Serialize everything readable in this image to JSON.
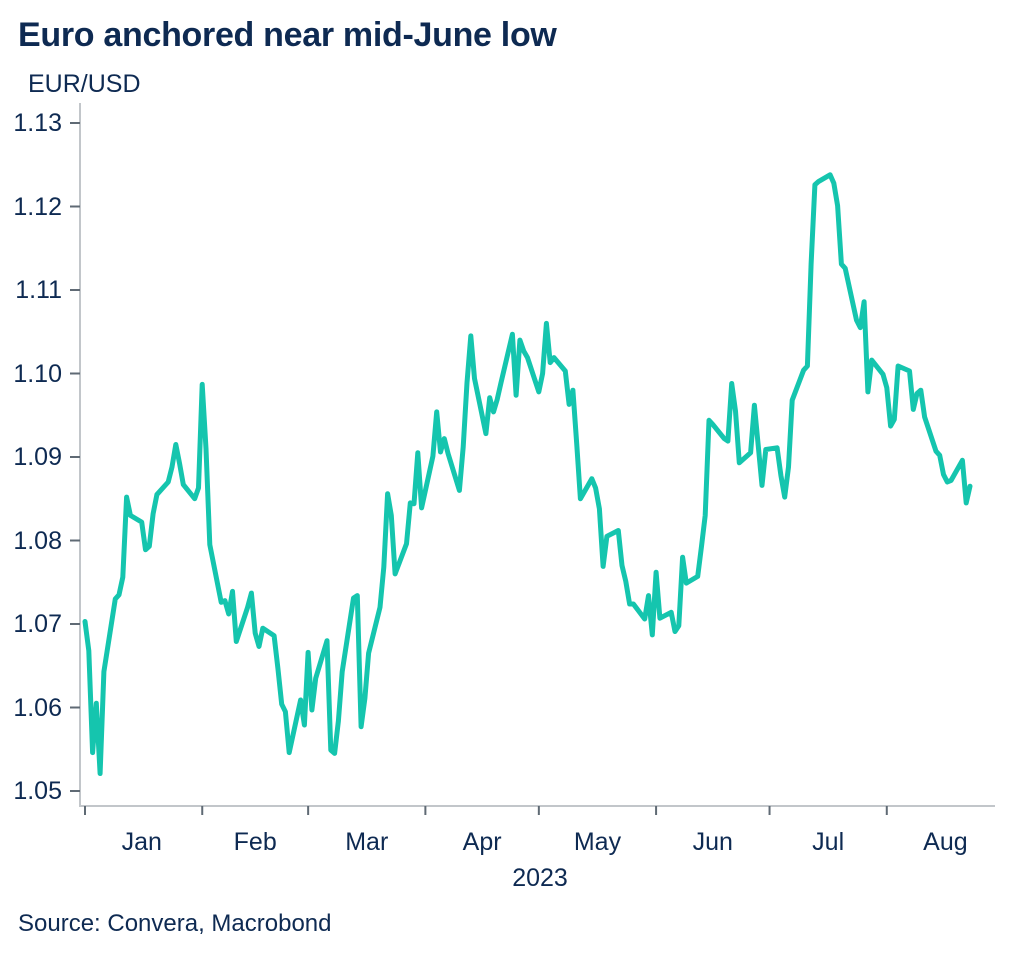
{
  "colors": {
    "accent_line": "#15c5ae",
    "text_navy": "#0e2a52",
    "axis_line": "#c2c6ca",
    "axis_tick": "#5f6a74",
    "background": "#ffffff"
  },
  "chart_data": {
    "type": "line",
    "title": "Euro anchored near mid-June low",
    "ylabel": "EUR/USD",
    "xlabel": "2023",
    "source": "Source: Convera, Macrobond",
    "ylim": [
      1.05,
      1.13
    ],
    "grid": false,
    "legend": "none",
    "line_color": "#15c5ae",
    "y_tick_labels": [
      "1.05",
      "1.06",
      "1.07",
      "1.08",
      "1.09",
      "1.10",
      "1.11",
      "1.12",
      "1.13"
    ],
    "x_tick_labels": [
      "Jan",
      "Feb",
      "Mar",
      "Apr",
      "May",
      "Jun",
      "Jul",
      "Aug"
    ],
    "series": [
      {
        "name": "EUR/USD",
        "dates": [
          "2023-01-01",
          "2023-01-02",
          "2023-01-03",
          "2023-01-04",
          "2023-01-05",
          "2023-01-06",
          "2023-01-09",
          "2023-01-10",
          "2023-01-11",
          "2023-01-12",
          "2023-01-13",
          "2023-01-16",
          "2023-01-17",
          "2023-01-18",
          "2023-01-19",
          "2023-01-20",
          "2023-01-23",
          "2023-01-24",
          "2023-01-25",
          "2023-01-26",
          "2023-01-27",
          "2023-01-30",
          "2023-01-31",
          "2023-02-01",
          "2023-02-02",
          "2023-02-03",
          "2023-02-06",
          "2023-02-07",
          "2023-02-08",
          "2023-02-09",
          "2023-02-10",
          "2023-02-13",
          "2023-02-14",
          "2023-02-15",
          "2023-02-16",
          "2023-02-17",
          "2023-02-20",
          "2023-02-21",
          "2023-02-22",
          "2023-02-23",
          "2023-02-24",
          "2023-02-27",
          "2023-02-28",
          "2023-03-01",
          "2023-03-02",
          "2023-03-03",
          "2023-03-06",
          "2023-03-07",
          "2023-03-08",
          "2023-03-09",
          "2023-03-10",
          "2023-03-13",
          "2023-03-14",
          "2023-03-15",
          "2023-03-16",
          "2023-03-17",
          "2023-03-20",
          "2023-03-21",
          "2023-03-22",
          "2023-03-23",
          "2023-03-24",
          "2023-03-27",
          "2023-03-28",
          "2023-03-29",
          "2023-03-30",
          "2023-03-31",
          "2023-04-03",
          "2023-04-04",
          "2023-04-05",
          "2023-04-06",
          "2023-04-07",
          "2023-04-10",
          "2023-04-11",
          "2023-04-12",
          "2023-04-13",
          "2023-04-14",
          "2023-04-17",
          "2023-04-18",
          "2023-04-19",
          "2023-04-20",
          "2023-04-21",
          "2023-04-24",
          "2023-04-25",
          "2023-04-26",
          "2023-04-27",
          "2023-04-28",
          "2023-05-01",
          "2023-05-02",
          "2023-05-03",
          "2023-05-04",
          "2023-05-05",
          "2023-05-08",
          "2023-05-09",
          "2023-05-10",
          "2023-05-11",
          "2023-05-12",
          "2023-05-15",
          "2023-05-16",
          "2023-05-17",
          "2023-05-18",
          "2023-05-19",
          "2023-05-22",
          "2023-05-23",
          "2023-05-24",
          "2023-05-25",
          "2023-05-26",
          "2023-05-29",
          "2023-05-30",
          "2023-05-31",
          "2023-06-01",
          "2023-06-02",
          "2023-06-05",
          "2023-06-06",
          "2023-06-07",
          "2023-06-08",
          "2023-06-09",
          "2023-06-12",
          "2023-06-13",
          "2023-06-14",
          "2023-06-15",
          "2023-06-16",
          "2023-06-19",
          "2023-06-20",
          "2023-06-21",
          "2023-06-22",
          "2023-06-23",
          "2023-06-26",
          "2023-06-27",
          "2023-06-28",
          "2023-06-29",
          "2023-06-30",
          "2023-07-03",
          "2023-07-04",
          "2023-07-05",
          "2023-07-06",
          "2023-07-07",
          "2023-07-10",
          "2023-07-11",
          "2023-07-12",
          "2023-07-13",
          "2023-07-14",
          "2023-07-17",
          "2023-07-18",
          "2023-07-19",
          "2023-07-20",
          "2023-07-21",
          "2023-07-24",
          "2023-07-25",
          "2023-07-26",
          "2023-07-27",
          "2023-07-28",
          "2023-07-31",
          "2023-08-01",
          "2023-08-02",
          "2023-08-03",
          "2023-08-04",
          "2023-08-07",
          "2023-08-08",
          "2023-08-09",
          "2023-08-10",
          "2023-08-11",
          "2023-08-14",
          "2023-08-15",
          "2023-08-16",
          "2023-08-17",
          "2023-08-18",
          "2023-08-21",
          "2023-08-22",
          "2023-08-23"
        ],
        "values": [
          1.0703,
          1.0668,
          1.0546,
          1.0605,
          1.0521,
          1.0643,
          1.073,
          1.0735,
          1.0756,
          1.0852,
          1.083,
          1.0822,
          1.0789,
          1.0793,
          1.0832,
          1.0855,
          1.087,
          1.0888,
          1.0915,
          1.0892,
          1.0867,
          1.085,
          1.0863,
          1.0987,
          1.091,
          1.0795,
          1.0726,
          1.0728,
          1.0712,
          1.0739,
          1.0679,
          1.072,
          1.0737,
          1.0689,
          1.0673,
          1.0695,
          1.0686,
          1.0647,
          1.0604,
          1.0595,
          1.0546,
          1.0609,
          1.0579,
          1.0666,
          1.0597,
          1.0635,
          1.068,
          1.0549,
          1.0545,
          1.0584,
          1.0643,
          1.0731,
          1.0734,
          1.0577,
          1.0611,
          1.0665,
          1.072,
          1.0768,
          1.0856,
          1.083,
          1.076,
          1.0796,
          1.0845,
          1.0844,
          1.0905,
          1.0839,
          1.0901,
          1.0954,
          1.0906,
          1.0922,
          1.0904,
          1.086,
          1.0912,
          1.0989,
          1.1045,
          1.0994,
          1.0928,
          1.0971,
          1.0954,
          1.0969,
          1.0989,
          1.1047,
          1.0974,
          1.104,
          1.1027,
          1.1019,
          1.0978,
          1.1,
          1.106,
          1.1013,
          1.1019,
          1.1003,
          1.0963,
          1.098,
          1.0916,
          1.085,
          1.0874,
          1.0863,
          1.0838,
          1.0769,
          1.0805,
          1.0812,
          1.077,
          1.0751,
          1.0724,
          1.0724,
          1.0706,
          1.0734,
          1.0687,
          1.0762,
          1.0707,
          1.0714,
          1.0691,
          1.0698,
          1.078,
          1.0749,
          1.0757,
          1.0793,
          1.083,
          1.0944,
          1.0939,
          1.0922,
          1.0919,
          1.0988,
          1.0955,
          1.0893,
          1.0905,
          1.0962,
          1.0914,
          1.0866,
          1.0909,
          1.0911,
          1.0878,
          1.0852,
          1.0888,
          1.0968,
          1.1004,
          1.1009,
          1.1131,
          1.1226,
          1.123,
          1.1238,
          1.1228,
          1.1201,
          1.1131,
          1.1126,
          1.1064,
          1.1055,
          1.1086,
          1.0978,
          1.1016,
          1.0999,
          1.0983,
          1.0937,
          1.0945,
          1.1009,
          1.1003,
          1.0957,
          1.0976,
          1.098,
          1.0948,
          1.0907,
          1.0902,
          1.0879,
          1.087,
          1.0872,
          1.0896,
          1.0845,
          1.0865
        ]
      }
    ]
  }
}
